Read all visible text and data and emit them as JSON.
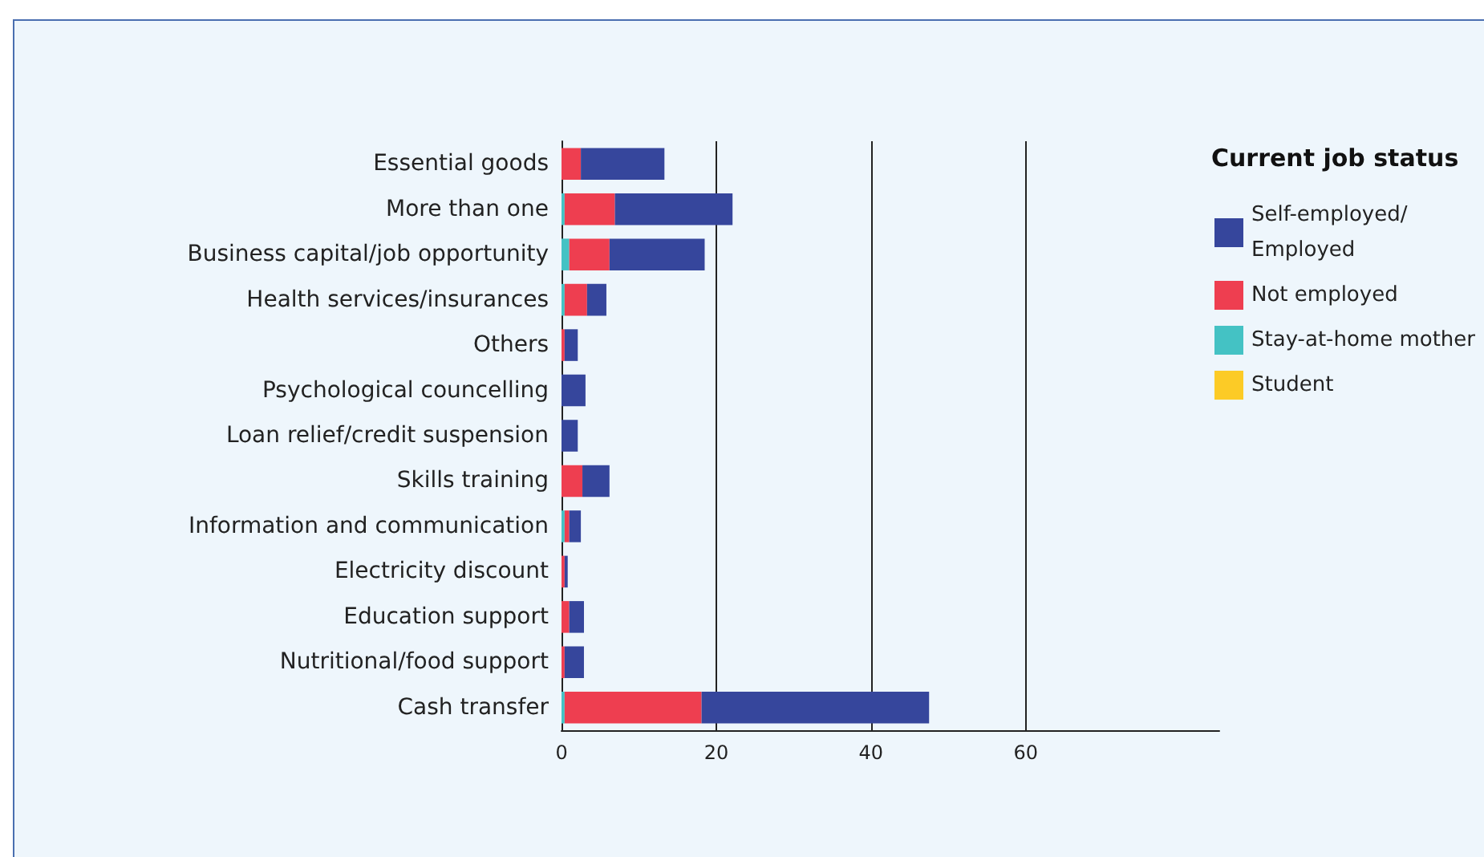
{
  "chart_data": {
    "type": "bar",
    "orientation": "horizontal",
    "stacked": true,
    "legend_title": "Current job status",
    "legend": "right",
    "categories": [
      "Essential goods",
      "More than one",
      "Business capital/job opportunity",
      "Health services/insurances",
      "Others",
      "Psychological councelling",
      "Loan relief/credit suspension",
      "Skills training",
      "Information and communication",
      "Electricity discount",
      "Education support",
      "Nutritional/food support",
      "Cash transfer"
    ],
    "series": [
      {
        "name": "Student",
        "color": "#fccb26",
        "values": [
          0,
          0,
          0,
          0,
          0,
          0,
          0,
          0,
          0,
          0,
          0,
          0,
          0
        ]
      },
      {
        "name": "Stay-at-home mother",
        "color": "#44c2c4",
        "values": [
          0,
          0.4,
          1.0,
          0.4,
          0,
          0,
          0,
          0,
          0.4,
          0,
          0,
          0,
          0.4
        ]
      },
      {
        "name": "Not employed",
        "color": "#ee3e50",
        "values": [
          2.5,
          6.5,
          5.2,
          2.9,
          0.4,
          0,
          0,
          2.7,
          0.6,
          0.4,
          1.0,
          0.4,
          17.7
        ]
      },
      {
        "name": "Self-employed/Employed",
        "color": "#36469c",
        "values": [
          10.8,
          15.2,
          12.3,
          2.5,
          1.7,
          3.1,
          2.1,
          3.5,
          1.5,
          0.4,
          1.9,
          2.5,
          29.4
        ]
      }
    ],
    "xlim": [
      0,
      85
    ],
    "xticks": [
      0,
      20,
      40,
      60
    ],
    "grid": "x"
  }
}
